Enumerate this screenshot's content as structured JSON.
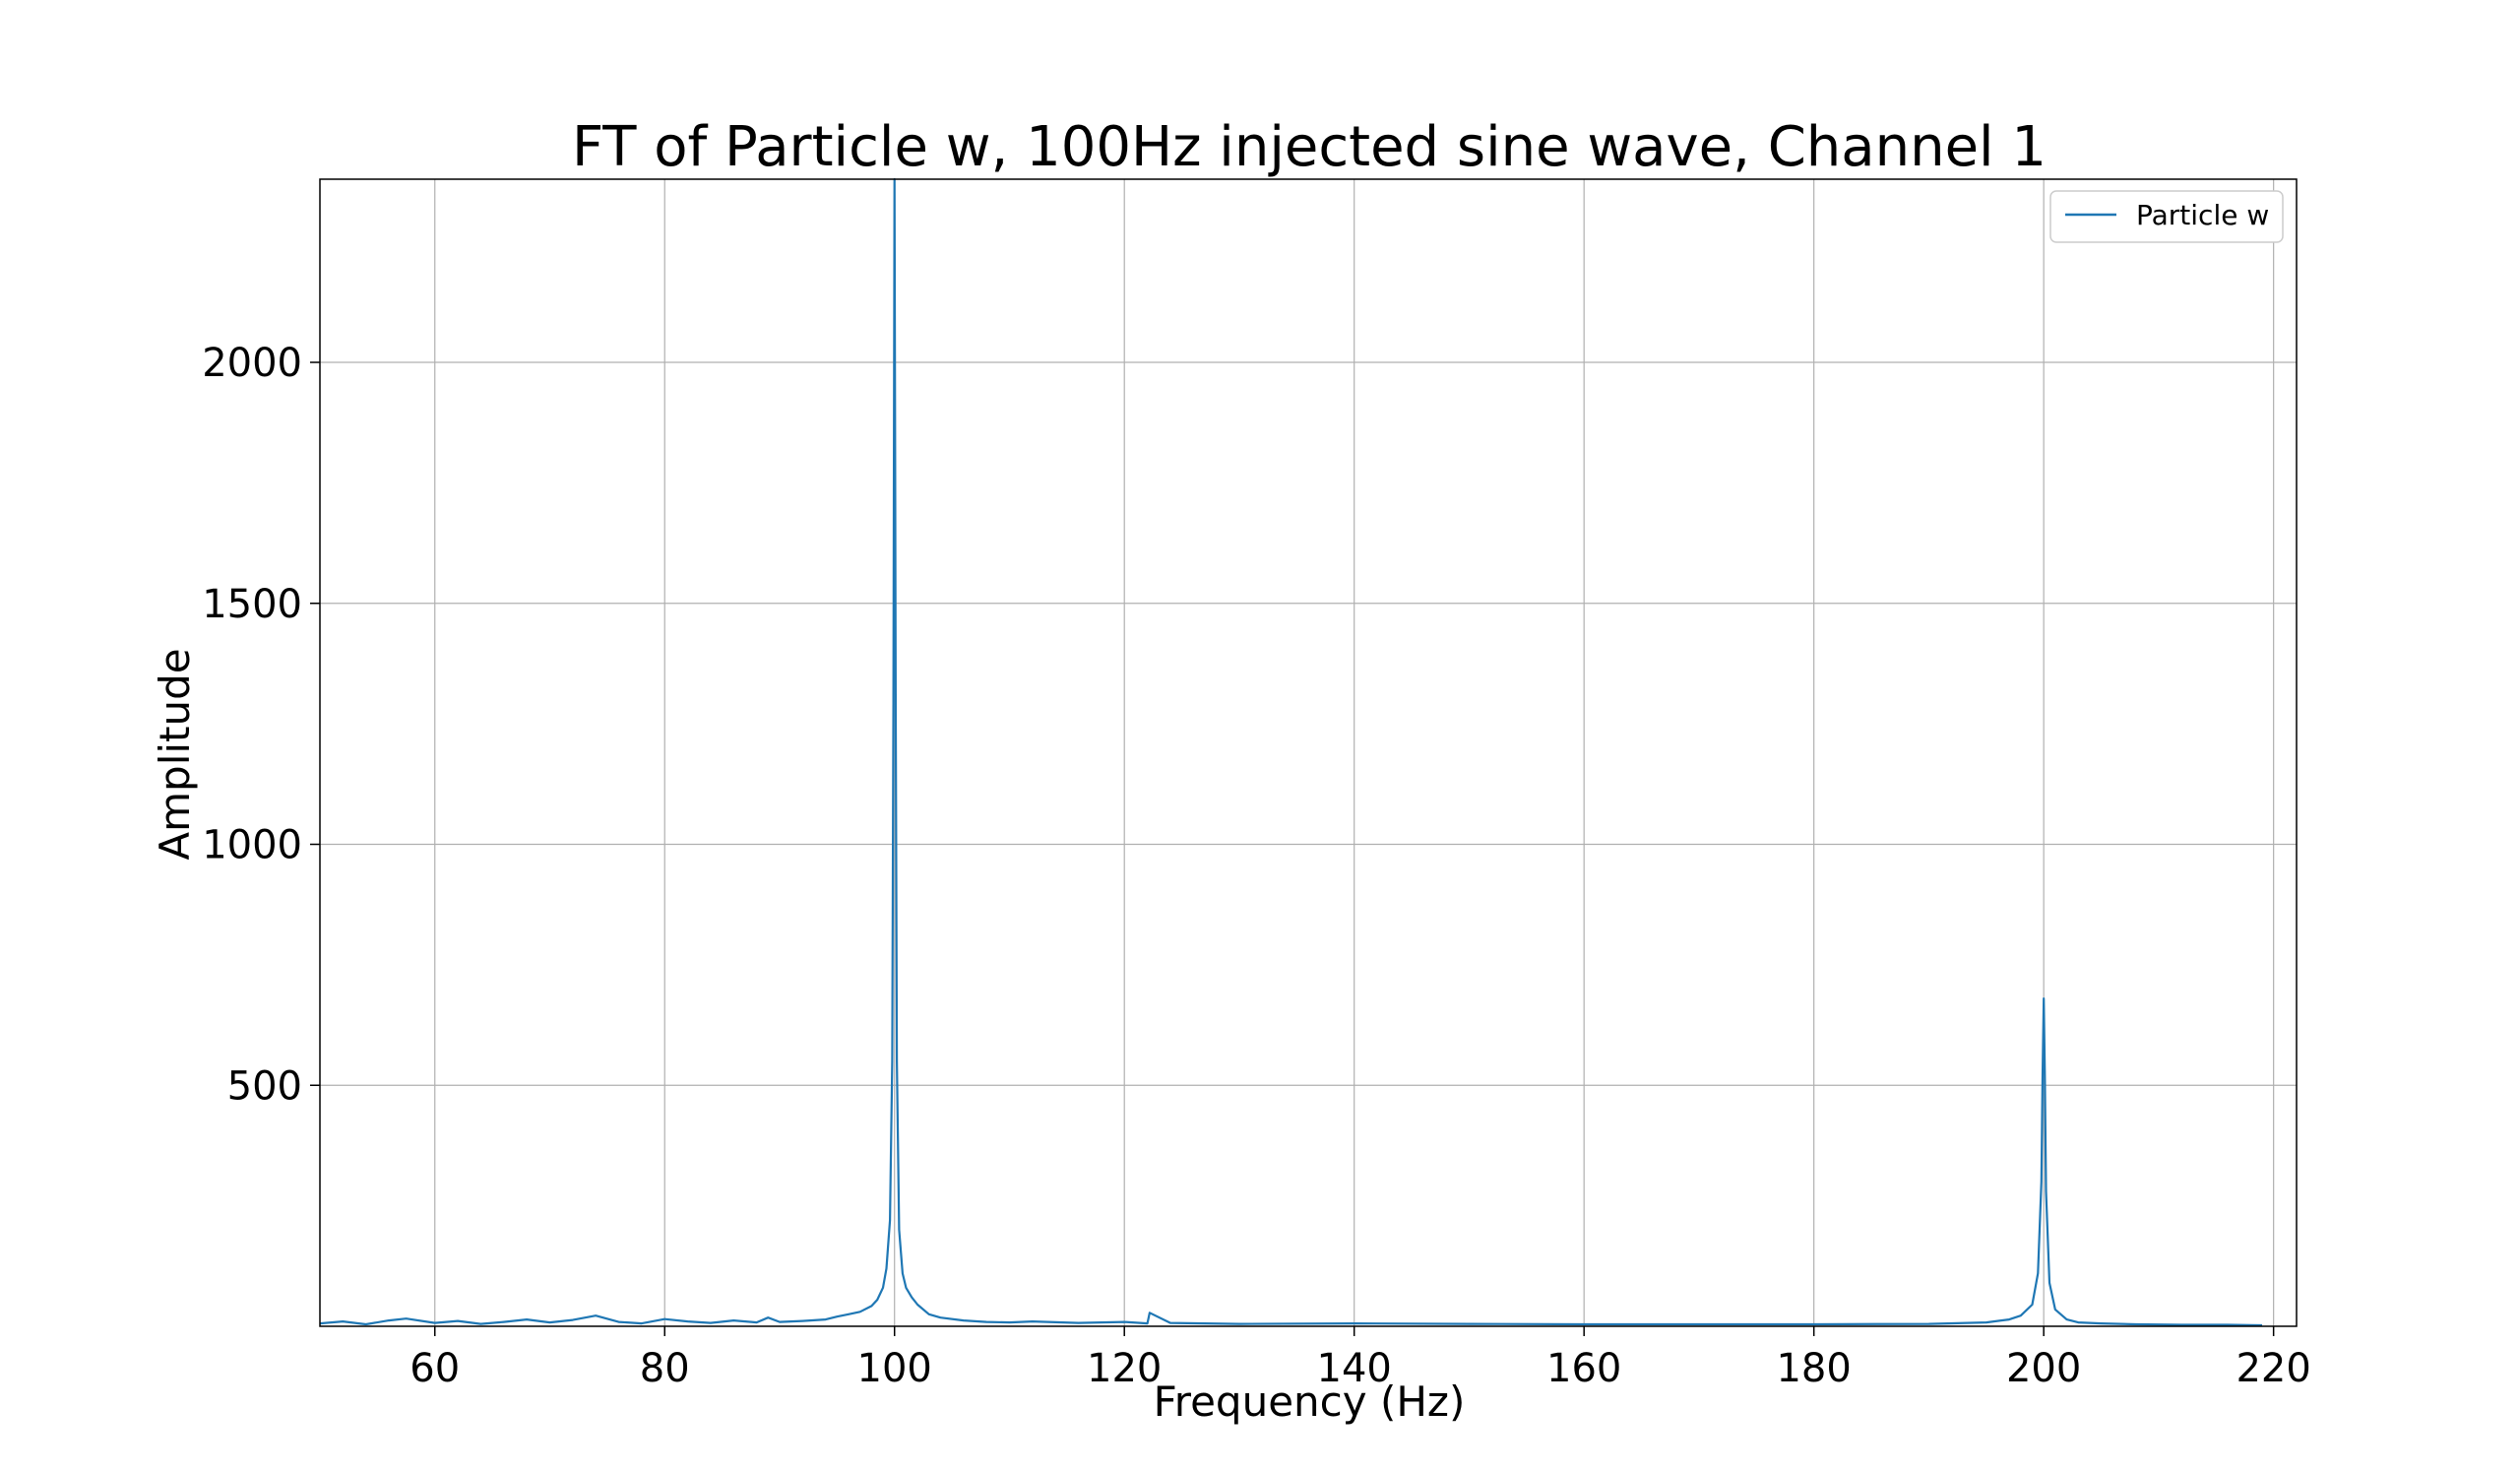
{
  "chart_data": {
    "type": "line",
    "title": "FT of Particle w, 100Hz injected sine wave, Channel 1",
    "xlabel": "Frequency (Hz)",
    "ylabel": "Amplitude",
    "xlim": [
      50,
      222
    ],
    "ylim": [
      0,
      2380
    ],
    "xticks": [
      60,
      80,
      100,
      120,
      140,
      160,
      180,
      200,
      220
    ],
    "yticks": [
      500,
      1000,
      1500,
      2000
    ],
    "grid": true,
    "legend_position": "top-right",
    "series": [
      {
        "name": "Particle w",
        "color": "#1f77b4",
        "x": [
          50,
          52,
          54,
          56,
          57.5,
          60,
          62,
          64,
          66,
          68,
          70,
          72,
          74,
          76,
          78,
          80,
          82,
          84,
          86,
          88,
          89,
          90,
          92,
          94,
          95,
          96,
          97,
          98,
          98.5,
          99,
          99.3,
          99.6,
          99.8,
          99.9,
          100,
          100.1,
          100.2,
          100.4,
          100.7,
          101,
          101.5,
          102,
          103,
          104,
          106,
          108,
          110,
          112,
          116,
          120,
          122,
          122.2,
          124,
          130,
          140,
          150,
          160,
          170,
          180,
          190,
          195,
          197,
          198,
          199,
          199.5,
          199.8,
          199.9,
          200,
          200.1,
          200.2,
          200.5,
          201,
          202,
          203,
          205,
          208,
          212,
          216,
          219
        ],
        "values": [
          6,
          10,
          4,
          12,
          16,
          7,
          11,
          5,
          9,
          14,
          8,
          13,
          22,
          9,
          6,
          15,
          10,
          7,
          12,
          8,
          18,
          9,
          11,
          14,
          20,
          25,
          30,
          42,
          55,
          80,
          120,
          220,
          550,
          1300,
          2380,
          1300,
          550,
          200,
          110,
          80,
          60,
          45,
          25,
          18,
          12,
          9,
          8,
          10,
          7,
          9,
          6,
          28,
          7,
          5,
          6,
          5,
          4,
          4,
          4,
          5,
          8,
          14,
          22,
          45,
          110,
          300,
          520,
          680,
          520,
          280,
          90,
          35,
          14,
          8,
          6,
          4,
          3,
          3,
          2
        ]
      }
    ]
  }
}
